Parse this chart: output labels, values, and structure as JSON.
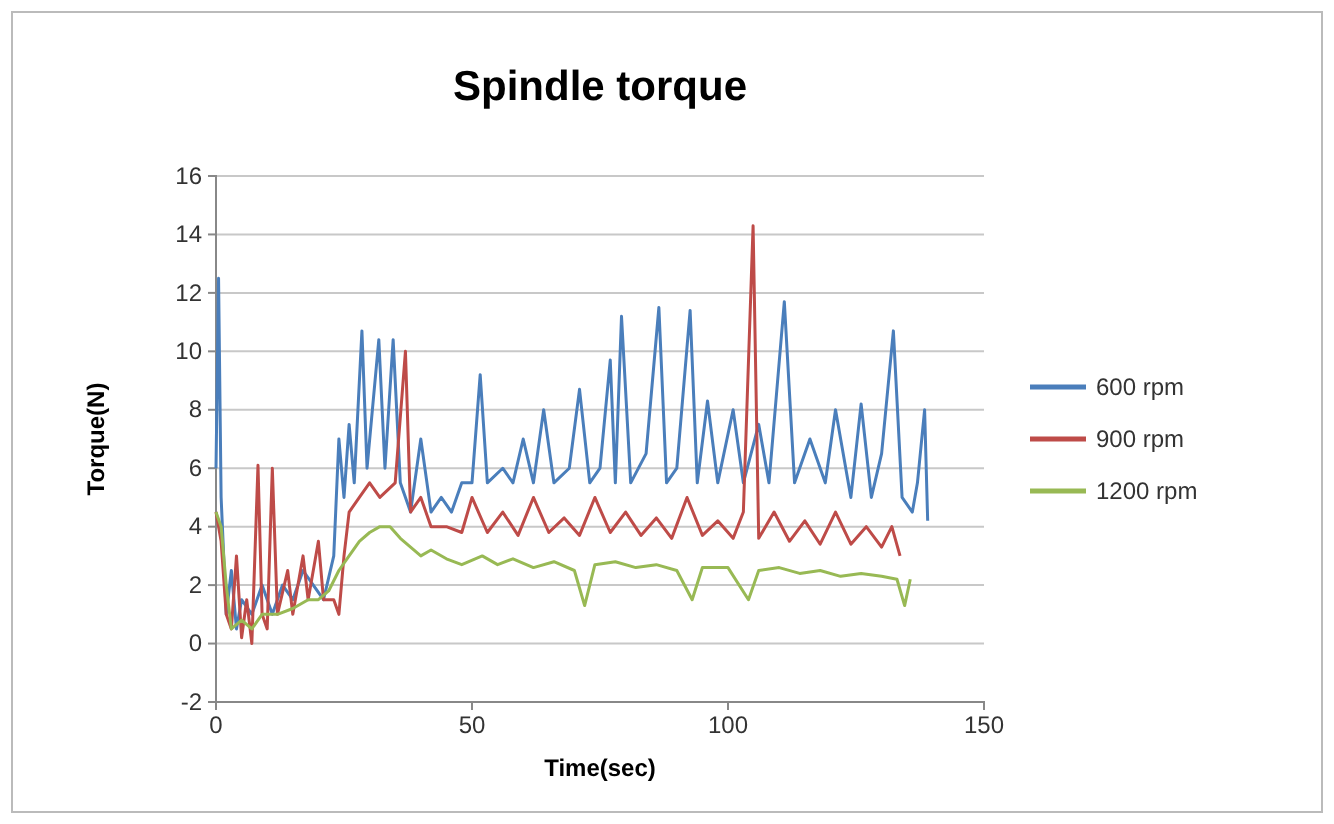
{
  "chart_data": {
    "type": "line",
    "title": "Spindle torque",
    "xlabel": "Time(sec)",
    "ylabel": "Torque(N)",
    "xlim": [
      0,
      150
    ],
    "xticks": [
      0,
      50,
      100,
      150
    ],
    "ylim": [
      -2,
      16
    ],
    "yticks": [
      -2,
      0,
      2,
      4,
      6,
      8,
      10,
      12,
      14,
      16
    ],
    "grid": "y",
    "legend": "right",
    "marker": "none",
    "line_style": "solid",
    "series": [
      {
        "name": "600 rpm",
        "color": "#4a7ebb",
        "x": [
          0,
          0.5,
          1,
          2,
          3,
          4,
          5,
          7,
          9,
          11,
          13,
          15,
          17,
          19,
          21,
          23,
          24,
          25,
          26,
          27,
          28.5,
          29.5,
          31.8,
          33,
          34.6,
          36,
          38,
          40,
          42,
          44,
          46,
          48,
          50,
          51.6,
          53,
          56,
          58,
          60,
          62,
          64,
          66,
          69,
          71,
          73,
          75,
          77,
          78,
          79.2,
          81,
          84,
          86.5,
          88,
          90,
          92.6,
          94,
          96,
          98,
          101,
          103,
          106,
          108,
          111,
          113,
          116,
          119,
          121,
          124,
          126,
          128,
          130,
          132.3,
          134,
          136,
          137,
          138.4,
          139
        ],
        "values": [
          6,
          12.5,
          5,
          1,
          2.5,
          0.5,
          1.5,
          1,
          2,
          1,
          2,
          1.5,
          2.5,
          2,
          1.5,
          3,
          7,
          5,
          7.5,
          5.5,
          10.7,
          6,
          10.4,
          6,
          10.4,
          5.5,
          4.5,
          7,
          4.5,
          5,
          4.5,
          5.5,
          5.5,
          9.2,
          5.5,
          6,
          5.5,
          7,
          5.5,
          8,
          5.5,
          6,
          8.7,
          5.5,
          6,
          9.7,
          5.5,
          11.2,
          5.5,
          6.5,
          11.5,
          5.5,
          6,
          11.4,
          5.5,
          8.3,
          5.5,
          8,
          5.5,
          7.5,
          5.5,
          11.7,
          5.5,
          7,
          5.5,
          8,
          5,
          8.2,
          5,
          6.5,
          10.7,
          5,
          4.5,
          5.5,
          8,
          4.2
        ]
      },
      {
        "name": "900 rpm",
        "color": "#be4b48",
        "x": [
          0,
          1,
          2,
          3,
          4,
          5,
          6,
          7,
          8.2,
          9,
          10,
          11,
          12,
          14,
          15,
          17,
          18,
          20,
          21,
          23,
          24,
          25,
          26,
          28,
          30,
          32,
          35,
          37,
          38,
          40,
          42,
          45,
          48,
          50,
          53,
          56,
          59,
          62,
          65,
          68,
          71,
          74,
          77,
          80,
          83,
          86,
          89,
          92,
          95,
          98,
          101,
          103,
          104.9,
          106,
          109,
          112,
          115,
          118,
          121,
          124,
          127,
          130,
          132,
          133.6
        ],
        "values": [
          4.5,
          3.5,
          1,
          0.5,
          3,
          0.2,
          1.5,
          0,
          6.1,
          1,
          0.5,
          6,
          1,
          2.5,
          1,
          3,
          1.5,
          3.5,
          1.5,
          1.5,
          1,
          3,
          4.5,
          5,
          5.5,
          5,
          5.5,
          10,
          4.5,
          5,
          4,
          4,
          3.8,
          5,
          3.8,
          4.5,
          3.7,
          5,
          3.8,
          4.3,
          3.7,
          5,
          3.8,
          4.5,
          3.7,
          4.3,
          3.6,
          5,
          3.7,
          4.2,
          3.6,
          4.5,
          14.3,
          3.6,
          4.5,
          3.5,
          4.2,
          3.4,
          4.5,
          3.4,
          4,
          3.3,
          4,
          3
        ]
      },
      {
        "name": "1200 rpm",
        "color": "#98b954",
        "x": [
          0,
          1,
          2,
          3,
          5,
          7,
          9,
          12,
          15,
          18,
          20,
          22,
          24,
          26,
          28,
          30,
          32,
          34,
          36,
          38,
          40,
          42,
          45,
          48,
          52,
          55,
          58,
          62,
          66,
          70,
          72,
          74,
          78,
          82,
          86,
          90,
          93,
          95,
          100,
          104,
          106,
          110,
          114,
          118,
          122,
          126,
          130,
          133,
          134.5,
          135.6
        ],
        "values": [
          4.5,
          4,
          2,
          0.5,
          0.8,
          0.5,
          1,
          1,
          1.2,
          1.5,
          1.5,
          1.8,
          2.5,
          3,
          3.5,
          3.8,
          4,
          4,
          3.6,
          3.3,
          3,
          3.2,
          2.9,
          2.7,
          3,
          2.7,
          2.9,
          2.6,
          2.8,
          2.5,
          1.3,
          2.7,
          2.8,
          2.6,
          2.7,
          2.5,
          1.5,
          2.6,
          2.6,
          1.5,
          2.5,
          2.6,
          2.4,
          2.5,
          2.3,
          2.4,
          2.3,
          2.2,
          1.3,
          2.2
        ]
      }
    ]
  }
}
